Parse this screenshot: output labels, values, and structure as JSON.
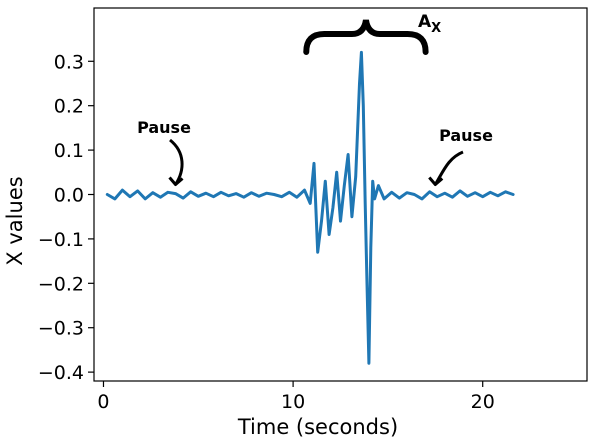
{
  "chart_data": {
    "type": "line",
    "title": "",
    "xlabel": "Time (seconds)",
    "ylabel": "X values",
    "xlim": [
      -0.5,
      25.5
    ],
    "ylim": [
      -0.42,
      0.42
    ],
    "xticks": [
      0,
      10,
      20
    ],
    "yticks": [
      -0.4,
      -0.3,
      -0.2,
      -0.1,
      0.0,
      0.1,
      0.2,
      0.3
    ],
    "xtick_labels": [
      "0",
      "10",
      "20"
    ],
    "ytick_labels": [
      "−0.4",
      "−0.3",
      "−0.2",
      "−0.1",
      "0.0",
      "0.1",
      "0.2",
      "0.3"
    ],
    "grid": false,
    "series": [
      {
        "color": "#1f77b4",
        "x": [
          0.2,
          0.6,
          1.0,
          1.4,
          1.8,
          2.2,
          2.6,
          3.0,
          3.4,
          3.8,
          4.2,
          4.6,
          5.0,
          5.4,
          5.8,
          6.2,
          6.6,
          7.0,
          7.4,
          7.8,
          8.2,
          8.6,
          9.0,
          9.4,
          9.8,
          10.2,
          10.6,
          10.9,
          11.1,
          11.3,
          11.5,
          11.7,
          11.9,
          12.1,
          12.3,
          12.5,
          12.7,
          12.9,
          13.1,
          13.3,
          13.5,
          13.6,
          13.7,
          13.8,
          13.9,
          14.0,
          14.1,
          14.2,
          14.3,
          14.5,
          14.8,
          15.2,
          15.6,
          16.0,
          16.4,
          16.8,
          17.2,
          17.6,
          18.0,
          18.4,
          18.8,
          19.2,
          19.6,
          20.0,
          20.4,
          20.8,
          21.2,
          21.6
        ],
        "y": [
          0.0,
          -0.01,
          0.01,
          -0.005,
          0.008,
          -0.01,
          0.004,
          -0.006,
          0.005,
          0.002,
          -0.008,
          0.006,
          -0.004,
          0.003,
          -0.005,
          0.005,
          -0.003,
          0.002,
          -0.006,
          0.004,
          -0.004,
          0.003,
          0.0,
          -0.005,
          0.005,
          -0.006,
          0.01,
          -0.02,
          0.07,
          -0.13,
          -0.06,
          0.03,
          -0.09,
          -0.03,
          0.05,
          -0.06,
          0.02,
          0.09,
          -0.05,
          0.04,
          0.25,
          0.32,
          0.2,
          -0.02,
          -0.2,
          -0.38,
          -0.12,
          0.03,
          -0.01,
          0.02,
          -0.01,
          0.005,
          -0.008,
          0.004,
          0.0,
          -0.01,
          0.006,
          -0.005,
          0.003,
          -0.006,
          0.008,
          -0.004,
          0.004,
          -0.005,
          0.005,
          -0.003,
          0.006,
          0.0
        ]
      }
    ],
    "annotations": [
      {
        "text": "Pause",
        "target_x": 3.8,
        "target_y": 0.0
      },
      {
        "text": "Pause",
        "target_x": 17.5,
        "target_y": 0.0
      },
      {
        "text": "A",
        "subscript": "X",
        "span": [
          10.8,
          17.2
        ]
      }
    ]
  }
}
